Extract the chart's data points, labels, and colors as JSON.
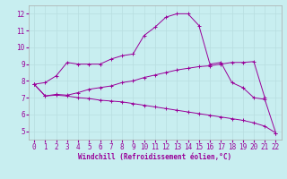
{
  "line1": {
    "x": [
      0,
      1,
      2,
      3,
      4,
      5,
      6,
      7,
      8,
      9,
      10,
      11,
      12,
      13,
      14,
      15,
      16,
      17,
      18,
      19,
      20,
      21,
      22
    ],
    "y": [
      7.8,
      7.9,
      8.3,
      9.1,
      9.0,
      9.0,
      9.0,
      9.3,
      9.5,
      9.6,
      10.7,
      11.2,
      11.8,
      12.0,
      12.0,
      11.3,
      9.0,
      9.1,
      7.9,
      7.6,
      7.0,
      6.9,
      4.9
    ]
  },
  "line2": {
    "x": [
      0,
      1,
      2,
      3,
      4,
      5,
      6,
      7,
      8,
      9,
      10,
      11,
      12,
      13,
      14,
      15,
      16,
      17,
      18,
      19,
      20,
      21,
      22
    ],
    "y": [
      7.8,
      7.1,
      7.2,
      7.15,
      7.3,
      7.5,
      7.6,
      7.7,
      7.9,
      8.0,
      8.2,
      8.35,
      8.5,
      8.65,
      8.75,
      8.85,
      8.9,
      9.0,
      9.1,
      9.1,
      9.15,
      7.0,
      null
    ]
  },
  "line3": {
    "x": [
      0,
      1,
      2,
      3,
      4,
      5,
      6,
      7,
      8,
      9,
      10,
      11,
      12,
      13,
      14,
      15,
      16,
      17,
      18,
      19,
      20,
      21,
      22
    ],
    "y": [
      7.8,
      7.1,
      7.15,
      7.1,
      7.0,
      6.95,
      6.85,
      6.8,
      6.75,
      6.65,
      6.55,
      6.45,
      6.35,
      6.25,
      6.15,
      6.05,
      5.95,
      5.85,
      5.75,
      5.65,
      5.5,
      5.3,
      4.9
    ]
  },
  "line_color": "#990099",
  "bg_color": "#c8eef0",
  "grid_color": "#b8dde0",
  "xlabel": "Windchill (Refroidissement éolien,°C)",
  "xlim": [
    -0.5,
    22.5
  ],
  "ylim": [
    4.5,
    12.5
  ],
  "xticks": [
    0,
    1,
    2,
    3,
    4,
    5,
    6,
    7,
    8,
    9,
    10,
    11,
    12,
    13,
    14,
    15,
    16,
    17,
    18,
    19,
    20,
    21,
    22
  ],
  "yticks": [
    5,
    6,
    7,
    8,
    9,
    10,
    11,
    12
  ],
  "axis_fontsize": 5.5
}
